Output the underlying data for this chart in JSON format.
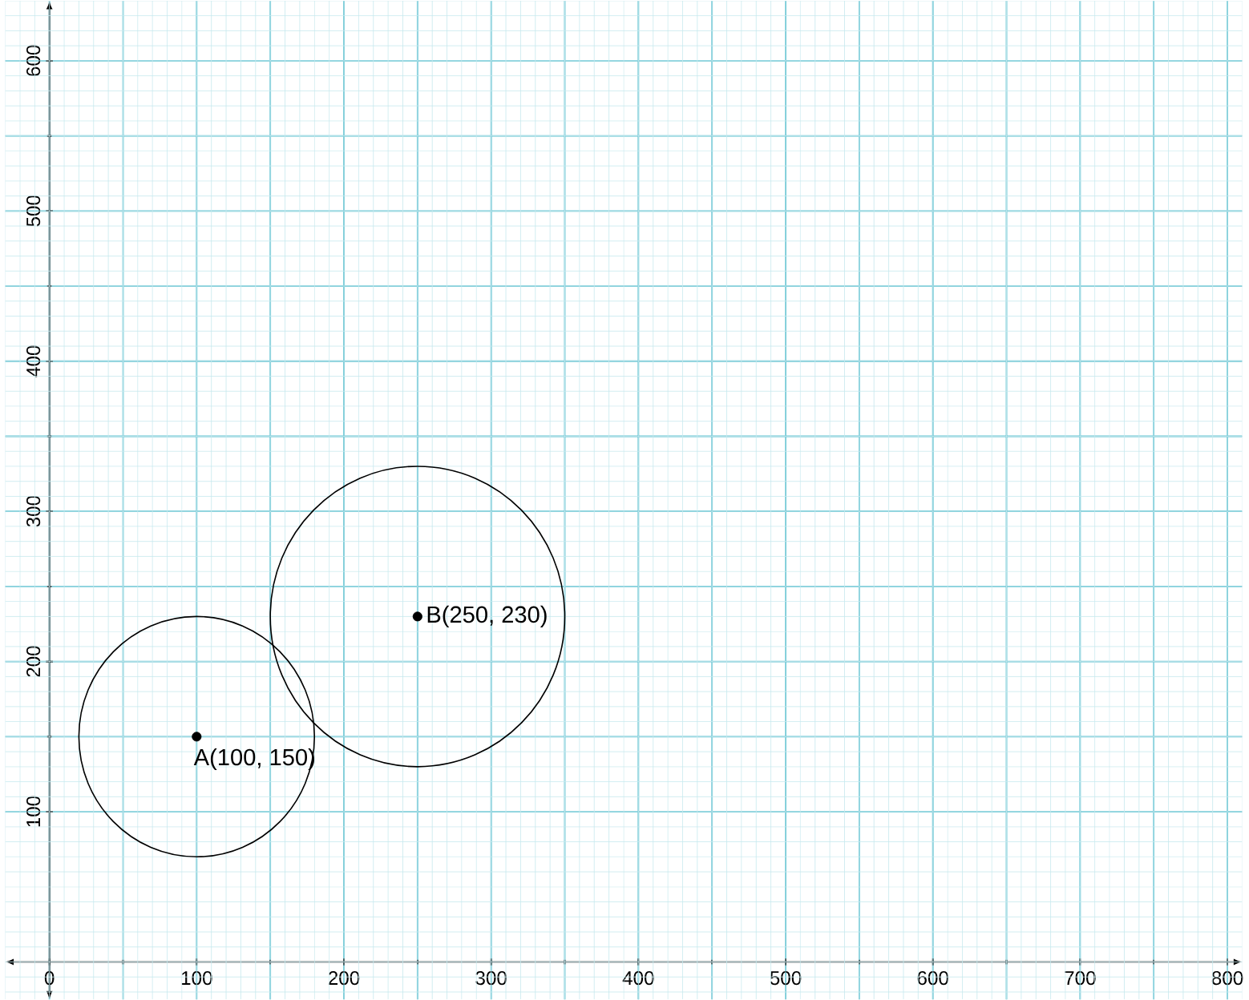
{
  "chart_data": {
    "type": "scatter",
    "xlim": [
      -30,
      810
    ],
    "ylim": [
      -25,
      640
    ],
    "xticks": [
      0,
      100,
      200,
      300,
      400,
      500,
      600,
      700,
      800
    ],
    "yticks": [
      100,
      200,
      300,
      400,
      500,
      600
    ],
    "grid": true,
    "series": [
      {
        "color": "#000000",
        "x": [
          100,
          250
        ],
        "values": [
          150,
          230
        ]
      }
    ],
    "annotations": [
      {
        "text": "A(100, 150)",
        "x": 100,
        "y": 150
      },
      {
        "text": "B(250, 230)",
        "x": 250,
        "y": 230
      }
    ]
  }
}
